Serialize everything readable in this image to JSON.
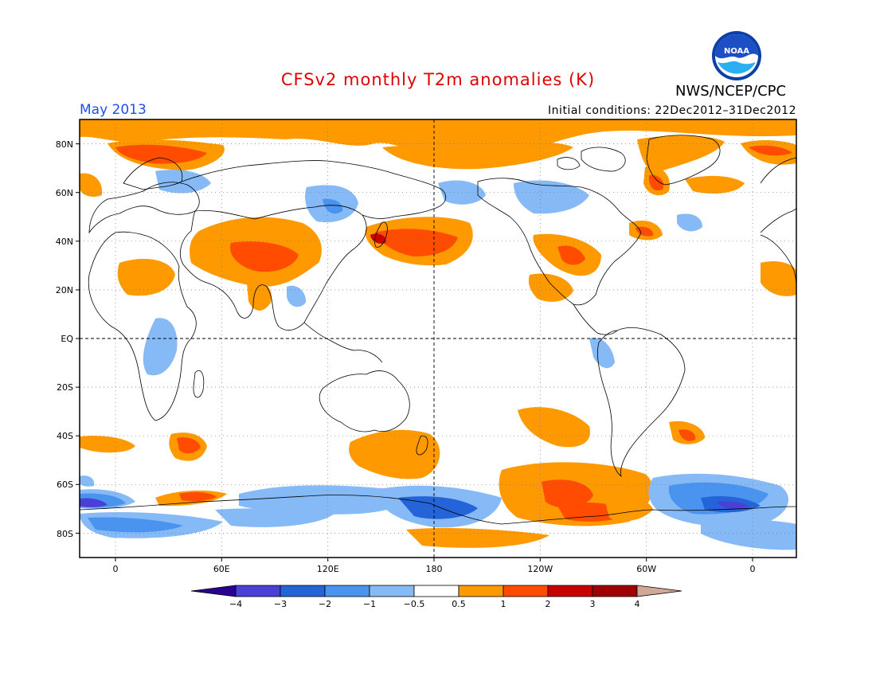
{
  "title": "CFSv2 monthly T2m anomalies (K)",
  "credit": "NWS/NCEP/CPC",
  "logo_text": "NOAA",
  "month": "May 2013",
  "initial_conditions": "Initial conditions: 22Dec2012–31Dec2012",
  "colors": {
    "title": "#e00000",
    "month": "#1e50f0"
  },
  "lat_labels": [
    "80N",
    "60N",
    "40N",
    "20N",
    "EQ",
    "20S",
    "40S",
    "60S",
    "80S"
  ],
  "lon_labels": [
    "0",
    "60E",
    "120E",
    "180",
    "120W",
    "60W",
    "0"
  ],
  "colorbar": {
    "labels": [
      "−4",
      "−3",
      "−2",
      "−1",
      "−0.5",
      "0.5",
      "1",
      "2",
      "3",
      "4"
    ],
    "colors": [
      "#2a0090",
      "#4a40d8",
      "#2464d8",
      "#4a94f0",
      "#86baf6",
      "#ffffff",
      "#ff9900",
      "#ff4c00",
      "#c80000",
      "#a00000",
      "#d0a898",
      "#80503c"
    ]
  }
}
